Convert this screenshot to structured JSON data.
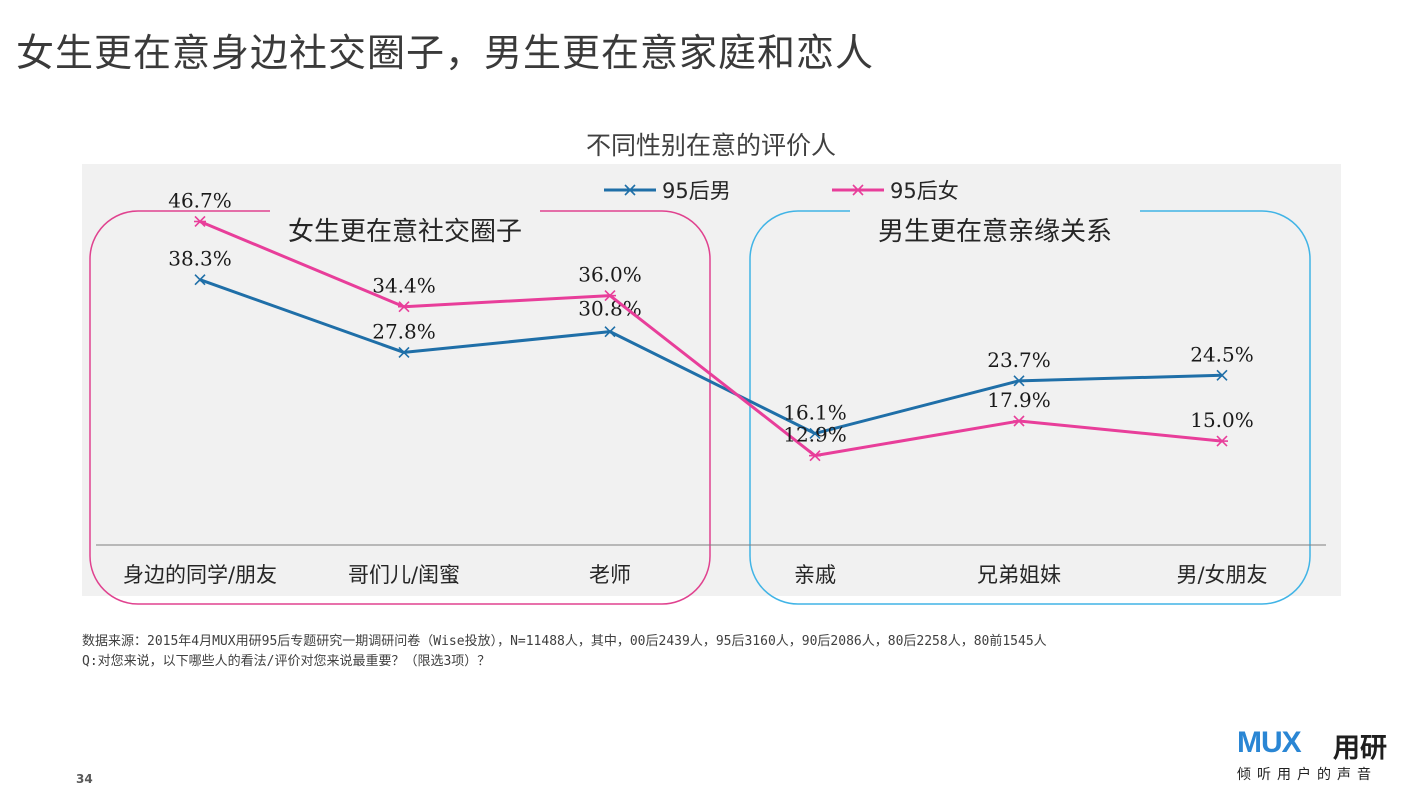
{
  "page": {
    "title": "女生更在意身边社交圈子，男生更在意家庭和恋人",
    "page_number": "34"
  },
  "footnote": {
    "source": "数据来源：2015年4月MUX用研95后专题研究一期调研问卷（Wise投放），N=11488人，其中，00后2439人，95后3160人，90后2086人，80后2258人，80前1545人",
    "question": "Q:对您来说，以下哪些人的看法/评价对您来说最重要？（限选3项）？"
  },
  "logo": {
    "mark": "MUX",
    "name": "用研",
    "slogan": "倾听用户的声音"
  },
  "groups": [
    {
      "label": "女生更在意社交圈子",
      "color": "#e0428f"
    },
    {
      "label": "男生更在意亲缘关系",
      "color": "#41b4e6"
    }
  ],
  "chart_data": {
    "type": "line",
    "title": "不同性别在意的评价人",
    "categories": [
      "身边的同学/朋友",
      "哥们儿/闺蜜",
      "老师",
      "亲戚",
      "兄弟姐妹",
      "男/女朋友"
    ],
    "series": [
      {
        "name": "95后男",
        "color": "#1f6fa8",
        "marker": "×",
        "values": [
          38.3,
          27.8,
          30.8,
          16.1,
          23.7,
          24.5
        ],
        "labels": [
          "38.3%",
          "27.8%",
          "30.8%",
          "16.1%",
          "23.7%",
          "24.5%"
        ]
      },
      {
        "name": "95后女",
        "color": "#e83e9a",
        "marker": "*",
        "values": [
          46.7,
          34.4,
          36.0,
          12.9,
          17.9,
          15.0
        ],
        "labels": [
          "46.7%",
          "34.4%",
          "36.0%",
          "12.9%",
          "17.9%",
          "15.0%"
        ]
      }
    ],
    "ylim": [
      0,
      55
    ],
    "grid": false,
    "legend": "top-center"
  }
}
